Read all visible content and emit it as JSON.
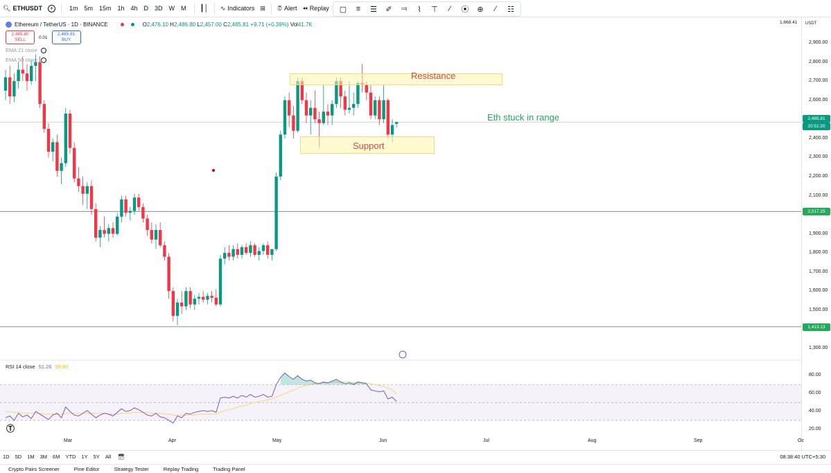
{
  "toolbar": {
    "symbol": "ETHUSDT",
    "timeframes": [
      "1m",
      "5m",
      "15m",
      "1h",
      "4h",
      "D",
      "3D",
      "W",
      "M"
    ],
    "active_timeframe": "D",
    "indicators_label": "Indicators",
    "alert_label": "Alert",
    "replay_label": "Replay"
  },
  "legend": {
    "title": "Ethereum / TetherUS · 1D · BINANCE",
    "o_label": "O",
    "o": "2,476.10",
    "h_label": "H",
    "h": "2,486.80",
    "l_label": "L",
    "l": "2,457.00",
    "c_label": "C",
    "c": "2,485.81",
    "change": "+9.71 (+0.39%)",
    "vol_label": "Vol",
    "vol": "41.7K",
    "sell_price": "2,485.80",
    "sell_label": "SELL",
    "spread": "0.01",
    "buy_price": "2,485.81",
    "buy_label": "BUY",
    "ema21": "EMA 21 close",
    "ema50": "EMA 50 close"
  },
  "annotations": {
    "resistance": "Resistance",
    "support": "Support",
    "note": "Eth stuck in range"
  },
  "price_axis": {
    "top_value": "1,668.41",
    "currency": "USDT",
    "labels": [
      "2,900.00",
      "2,800.00",
      "2,700.00",
      "2,600.00",
      "2,500.00",
      "2,400.00",
      "2,300.00",
      "2,200.00",
      "2,100.00",
      "2,000.00",
      "1,900.00",
      "1,800.00",
      "1,700.00",
      "1,600.00",
      "1,500.00",
      "1,400.00",
      "1,300.00"
    ],
    "current_price": "2,485.81",
    "countdown": "20:51:20",
    "line1_value": "2,017.25",
    "line2_value": "1,413.13",
    "rsi_labels": [
      "80.00",
      "60.00",
      "40.00",
      "20.00"
    ]
  },
  "rsi": {
    "label": "RSI 14 close",
    "value": "51.26",
    "ma_value": "59.90"
  },
  "time_axis": [
    "Mar",
    "Apr",
    "May",
    "Jun",
    "Jul",
    "Aug",
    "Sep",
    "Oc"
  ],
  "bottom": {
    "ranges": [
      "1D",
      "5D",
      "1M",
      "3M",
      "6M",
      "YTD",
      "1Y",
      "5Y",
      "All"
    ],
    "clock": "08:38:40 UTC+5:30"
  },
  "tabs": [
    "Crypto Pairs Screener",
    "Pine Editor",
    "Strategy Tester",
    "Replay Trading",
    "Trading Panel"
  ],
  "colors": {
    "up": "#089981",
    "down": "#f23645",
    "resistance_text": "#e0474c",
    "support_text": "#e0474c",
    "note_text": "#22ab5a",
    "rsi_line": "#7e57c2",
    "rsi_ma": "#f7d774"
  },
  "chart_data": {
    "type": "candlestick",
    "ohlc": [
      [
        2650,
        2760,
        2600,
        2720
      ],
      [
        2720,
        2780,
        2580,
        2620
      ],
      [
        2620,
        2740,
        2590,
        2700
      ],
      [
        2700,
        2800,
        2660,
        2760
      ],
      [
        2760,
        2830,
        2700,
        2740
      ],
      [
        2740,
        2790,
        2650,
        2700
      ],
      [
        2700,
        2810,
        2680,
        2780
      ],
      [
        2780,
        2840,
        2700,
        2800
      ],
      [
        2800,
        2830,
        2560,
        2580
      ],
      [
        2580,
        2600,
        2430,
        2450
      ],
      [
        2450,
        2480,
        2300,
        2330
      ],
      [
        2330,
        2400,
        2280,
        2380
      ],
      [
        2380,
        2420,
        2200,
        2230
      ],
      [
        2230,
        2300,
        2160,
        2270
      ],
      [
        2270,
        2560,
        2250,
        2530
      ],
      [
        2530,
        2550,
        2320,
        2350
      ],
      [
        2350,
        2380,
        2170,
        2190
      ],
      [
        2190,
        2250,
        2120,
        2150
      ],
      [
        2150,
        2200,
        2050,
        2110
      ],
      [
        2110,
        2170,
        2030,
        2150
      ],
      [
        2150,
        2180,
        2000,
        2030
      ],
      [
        2030,
        2060,
        1860,
        1880
      ],
      [
        1880,
        1940,
        1830,
        1920
      ],
      [
        1920,
        1990,
        1880,
        1900
      ],
      [
        1900,
        1950,
        1860,
        1930
      ],
      [
        1930,
        1960,
        1880,
        1900
      ],
      [
        1900,
        2010,
        1890,
        1990
      ],
      [
        1990,
        2100,
        1960,
        2080
      ],
      [
        2080,
        2100,
        1990,
        2010
      ],
      [
        2010,
        2040,
        1970,
        2020
      ],
      [
        2020,
        2110,
        2000,
        2090
      ],
      [
        2090,
        2110,
        2020,
        2040
      ],
      [
        2040,
        2060,
        1960,
        1980
      ],
      [
        1980,
        2000,
        1890,
        1920
      ],
      [
        1920,
        1960,
        1850,
        1870
      ],
      [
        1870,
        1950,
        1820,
        1920
      ],
      [
        1920,
        1960,
        1830,
        1840
      ],
      [
        1840,
        1860,
        1760,
        1780
      ],
      [
        1780,
        1800,
        1560,
        1600
      ],
      [
        1600,
        1620,
        1440,
        1470
      ],
      [
        1470,
        1560,
        1420,
        1540
      ],
      [
        1540,
        1600,
        1480,
        1520
      ],
      [
        1520,
        1620,
        1500,
        1600
      ],
      [
        1600,
        1620,
        1510,
        1530
      ],
      [
        1530,
        1580,
        1500,
        1560
      ],
      [
        1560,
        1590,
        1530,
        1570
      ],
      [
        1570,
        1600,
        1540,
        1555
      ],
      [
        1555,
        1590,
        1530,
        1575
      ],
      [
        1575,
        1600,
        1540,
        1565
      ],
      [
        1565,
        1610,
        1520,
        1530
      ],
      [
        1530,
        1790,
        1520,
        1770
      ],
      [
        1770,
        1830,
        1740,
        1800
      ],
      [
        1800,
        1840,
        1760,
        1780
      ],
      [
        1780,
        1840,
        1760,
        1820
      ],
      [
        1820,
        1850,
        1770,
        1790
      ],
      [
        1790,
        1840,
        1770,
        1830
      ],
      [
        1830,
        1850,
        1790,
        1800
      ],
      [
        1800,
        1860,
        1780,
        1840
      ],
      [
        1840,
        1850,
        1780,
        1790
      ],
      [
        1790,
        1830,
        1760,
        1810
      ],
      [
        1810,
        1850,
        1790,
        1840
      ],
      [
        1840,
        1860,
        1770,
        1790
      ],
      [
        1790,
        1810,
        1760,
        1820
      ],
      [
        1820,
        2220,
        1810,
        2200
      ],
      [
        2200,
        2440,
        2180,
        2420
      ],
      [
        2420,
        2620,
        2400,
        2600
      ],
      [
        2600,
        2640,
        2460,
        2520
      ],
      [
        2520,
        2570,
        2400,
        2440
      ],
      [
        2440,
        2720,
        2430,
        2700
      ],
      [
        2700,
        2720,
        2580,
        2600
      ],
      [
        2600,
        2640,
        2480,
        2520
      ],
      [
        2520,
        2600,
        2420,
        2560
      ],
      [
        2560,
        2650,
        2480,
        2500
      ],
      [
        2500,
        2540,
        2350,
        2480
      ],
      [
        2480,
        2680,
        2470,
        2540
      ],
      [
        2540,
        2580,
        2470,
        2520
      ],
      [
        2520,
        2600,
        2470,
        2580
      ],
      [
        2580,
        2720,
        2560,
        2700
      ],
      [
        2700,
        2720,
        2560,
        2620
      ],
      [
        2620,
        2650,
        2520,
        2550
      ],
      [
        2550,
        2700,
        2530,
        2560
      ],
      [
        2560,
        2640,
        2520,
        2580
      ],
      [
        2580,
        2700,
        2560,
        2690
      ],
      [
        2690,
        2790,
        2640,
        2680
      ],
      [
        2680,
        2700,
        2600,
        2640
      ],
      [
        2640,
        2680,
        2500,
        2520
      ],
      [
        2520,
        2620,
        2500,
        2600
      ],
      [
        2600,
        2620,
        2470,
        2500
      ],
      [
        2500,
        2680,
        2480,
        2600
      ],
      [
        2600,
        2610,
        2400,
        2420
      ],
      [
        2420,
        2500,
        2380,
        2470
      ],
      [
        2476.1,
        2486.8,
        2457.0,
        2485.81
      ]
    ],
    "horizontal_lines": [
      2017.25,
      1413.13
    ],
    "current_price": 2485.81,
    "resistance_zone": [
      2670,
      2730
    ],
    "support_zone": [
      2330,
      2420
    ],
    "ylim": [
      1250,
      2980
    ],
    "rsi": {
      "values": [
        33,
        35,
        30,
        38,
        34,
        36,
        32,
        40,
        37,
        34,
        31,
        36,
        38,
        33,
        45,
        40,
        36,
        35,
        38,
        41,
        37,
        33,
        36,
        38,
        37,
        35,
        39,
        43,
        40,
        41,
        44,
        42,
        39,
        36,
        35,
        38,
        34,
        33,
        30,
        27,
        35,
        33,
        38,
        37,
        39,
        40,
        41,
        40,
        41,
        39,
        55,
        56,
        55,
        57,
        55,
        58,
        56,
        59,
        56,
        57,
        59,
        56,
        57,
        70,
        78,
        83,
        79,
        76,
        80,
        76,
        74,
        75,
        72,
        71,
        73,
        72,
        74,
        76,
        73,
        71,
        72,
        70,
        73,
        72,
        71,
        64,
        63,
        62,
        63,
        54,
        56,
        51.26
      ],
      "ma": [
        40,
        40,
        39,
        39,
        38,
        38,
        38,
        38,
        38,
        37,
        37,
        37,
        37,
        37,
        38,
        38,
        38,
        38,
        38,
        38,
        38,
        38,
        38,
        38,
        37,
        37,
        37,
        38,
        38,
        38,
        39,
        39,
        39,
        39,
        38,
        38,
        38,
        37,
        37,
        36,
        36,
        36,
        36,
        36,
        36,
        37,
        37,
        37,
        37,
        37,
        39,
        41,
        42,
        43,
        45,
        46,
        47,
        49,
        50,
        51,
        52,
        53,
        54,
        56,
        58,
        60,
        62,
        64,
        66,
        68,
        69,
        70,
        71,
        72,
        72,
        72,
        73,
        73,
        73,
        73,
        73,
        72,
        72,
        72,
        72,
        71,
        70,
        69,
        68,
        66,
        64,
        59.9
      ],
      "ylim": [
        15,
        90
      ],
      "upper": 70,
      "lower": 30,
      "mid": 50
    }
  }
}
